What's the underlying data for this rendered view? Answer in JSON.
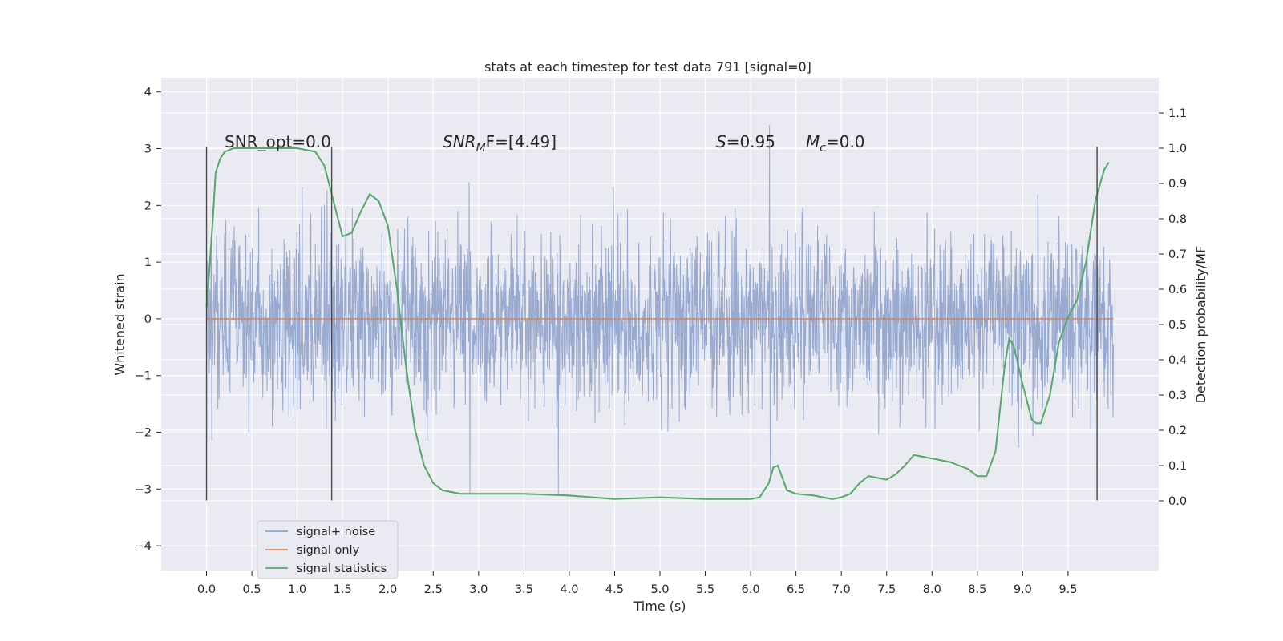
{
  "chart_data": {
    "type": "line",
    "title": "stats at each timestep for test data 791 [signal=0]",
    "xlabel": "Time (s)",
    "ylabel_left": "Whitened strain",
    "ylabel_right": "Detection probability/MF",
    "xlim": [
      -0.5,
      10.5
    ],
    "ylim_left": [
      -4.45,
      4.25
    ],
    "ylim_right": [
      -0.2,
      1.2
    ],
    "x_ticks": [
      "0.0",
      "0.5",
      "1.0",
      "1.5",
      "2.0",
      "2.5",
      "3.0",
      "3.5",
      "4.0",
      "4.5",
      "5.0",
      "5.5",
      "6.0",
      "6.5",
      "7.0",
      "7.5",
      "8.0",
      "8.5",
      "9.0",
      "9.5"
    ],
    "y_left_ticks": [
      "4",
      "3",
      "2",
      "1",
      "0",
      "−1",
      "−2",
      "−3",
      "−4"
    ],
    "y_right_ticks": [
      "1.1",
      "1.0",
      "0.9",
      "0.8",
      "0.7",
      "0.6",
      "0.5",
      "0.4",
      "0.3",
      "0.2",
      "0.1",
      "0.0"
    ],
    "grid": true,
    "legend_placement": "lower-left",
    "annotations": {
      "snr_opt": "SNR_opt=0.0",
      "snr_mf_main": "SNR",
      "snr_mf_sub": "M",
      "snr_mf_rest": "F=[4.49]",
      "s_main": "S",
      "s_rest": "=0.95",
      "mc_main": "M",
      "mc_sub": "c",
      "mc_rest": "=0.0"
    },
    "vertical_markers_x": [
      0.0,
      1.38,
      9.82
    ],
    "noise_range_x": [
      0.0,
      10.0
    ],
    "series": [
      {
        "name": "signal+ noise",
        "color": "#8fa3cc",
        "style": "dense noise band",
        "approx_range": [
          -3.5,
          3.9
        ]
      },
      {
        "name": "signal only",
        "color": "#dd8452",
        "x": [
          0.0,
          10.0
        ],
        "y": [
          0.0,
          0.0
        ]
      },
      {
        "name": "signal statistics",
        "color": "#55a868",
        "axis": "right",
        "x": [
          0.0,
          0.03,
          0.07,
          0.1,
          0.15,
          0.2,
          0.3,
          0.4,
          0.6,
          0.8,
          1.0,
          1.2,
          1.3,
          1.4,
          1.5,
          1.6,
          1.7,
          1.8,
          1.9,
          2.0,
          2.1,
          2.2,
          2.3,
          2.4,
          2.5,
          2.6,
          2.7,
          2.8,
          3.0,
          3.2,
          3.5,
          4.0,
          4.5,
          5.0,
          5.5,
          6.0,
          6.1,
          6.2,
          6.25,
          6.3,
          6.4,
          6.5,
          6.7,
          6.9,
          7.0,
          7.1,
          7.2,
          7.3,
          7.4,
          7.5,
          7.6,
          7.7,
          7.8,
          7.9,
          8.0,
          8.1,
          8.2,
          8.3,
          8.4,
          8.5,
          8.6,
          8.7,
          8.8,
          8.85,
          8.9,
          9.0,
          9.1,
          9.15,
          9.2,
          9.3,
          9.4,
          9.5,
          9.6,
          9.7,
          9.8,
          9.9,
          9.95
        ],
        "y": [
          0.55,
          0.65,
          0.8,
          0.93,
          0.97,
          0.99,
          1.0,
          1.0,
          1.0,
          1.0,
          1.0,
          0.99,
          0.95,
          0.85,
          0.75,
          0.76,
          0.82,
          0.87,
          0.85,
          0.78,
          0.6,
          0.38,
          0.2,
          0.1,
          0.05,
          0.03,
          0.025,
          0.02,
          0.02,
          0.02,
          0.02,
          0.015,
          0.005,
          0.01,
          0.005,
          0.005,
          0.01,
          0.05,
          0.095,
          0.1,
          0.03,
          0.02,
          0.015,
          0.005,
          0.01,
          0.02,
          0.05,
          0.07,
          0.065,
          0.06,
          0.075,
          0.1,
          0.13,
          0.125,
          0.12,
          0.115,
          0.11,
          0.1,
          0.09,
          0.07,
          0.07,
          0.14,
          0.38,
          0.46,
          0.44,
          0.33,
          0.23,
          0.22,
          0.22,
          0.3,
          0.45,
          0.52,
          0.57,
          0.68,
          0.85,
          0.94,
          0.96
        ]
      }
    ]
  }
}
